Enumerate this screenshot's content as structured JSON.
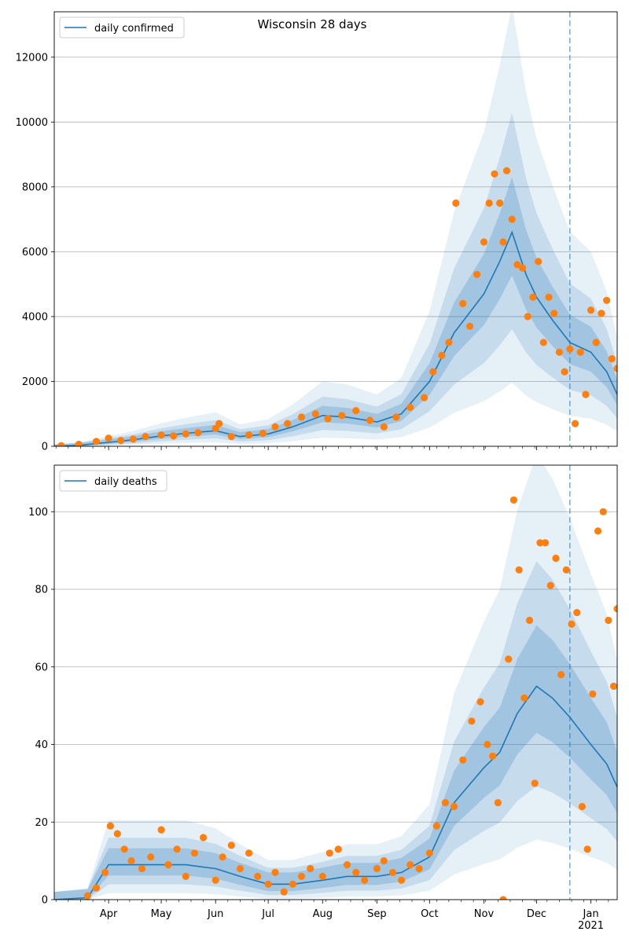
{
  "figure": {
    "title": "Wisconsin 28 days"
  },
  "colors": {
    "model": "#1f77b4",
    "observed": "#ff7f0e",
    "grid": "#b0b0b0",
    "band": "#1f77b4"
  },
  "x_axis": {
    "start_date": "2020-03-01",
    "end_date": "2021-01-16",
    "month_ticks": [
      {
        "date": "2020-04-01",
        "label": "Apr"
      },
      {
        "date": "2020-05-01",
        "label": "May"
      },
      {
        "date": "2020-06-01",
        "label": "Jun"
      },
      {
        "date": "2020-07-01",
        "label": "Jul"
      },
      {
        "date": "2020-08-01",
        "label": "Aug"
      },
      {
        "date": "2020-09-01",
        "label": "Sep"
      },
      {
        "date": "2020-10-01",
        "label": "Oct"
      },
      {
        "date": "2020-11-01",
        "label": "Nov"
      },
      {
        "date": "2020-12-01",
        "label": "Dec"
      },
      {
        "date": "2021-01-01",
        "label": "Jan"
      }
    ],
    "year_label": "2021",
    "forecast_line_date": "2020-12-20"
  },
  "chart_data": [
    {
      "type": "line",
      "title": "Wisconsin 28 days",
      "ylim": [
        0,
        13400
      ],
      "yticks": [
        0,
        2000,
        4000,
        6000,
        8000,
        10000,
        12000
      ],
      "grid": "horizontal",
      "legend": {
        "position": "top-left",
        "entries": [
          "daily confirmed"
        ]
      },
      "series": [
        {
          "name": "daily confirmed",
          "kind": "model-median",
          "x": [
            "2020-03-01",
            "2020-03-15",
            "2020-04-01",
            "2020-04-15",
            "2020-05-01",
            "2020-05-15",
            "2020-06-01",
            "2020-06-15",
            "2020-07-01",
            "2020-07-15",
            "2020-08-01",
            "2020-08-15",
            "2020-09-01",
            "2020-09-15",
            "2020-10-01",
            "2020-10-15",
            "2020-11-01",
            "2020-11-10",
            "2020-11-17",
            "2020-11-25",
            "2020-12-01",
            "2020-12-10",
            "2020-12-20",
            "2021-01-01",
            "2021-01-10",
            "2021-01-16"
          ],
          "y": [
            0,
            30,
            120,
            200,
            320,
            400,
            480,
            300,
            380,
            600,
            950,
            900,
            750,
            1000,
            2000,
            3500,
            4700,
            5700,
            6600,
            5300,
            4600,
            3900,
            3200,
            2900,
            2300,
            1600
          ]
        },
        {
          "name": "",
          "kind": "observed",
          "x": [
            "2020-03-05",
            "2020-03-15",
            "2020-03-25",
            "2020-04-01",
            "2020-04-08",
            "2020-04-15",
            "2020-04-22",
            "2020-05-01",
            "2020-05-08",
            "2020-05-15",
            "2020-05-22",
            "2020-06-01",
            "2020-06-03",
            "2020-06-10",
            "2020-06-20",
            "2020-06-28",
            "2020-07-05",
            "2020-07-12",
            "2020-07-20",
            "2020-07-28",
            "2020-08-04",
            "2020-08-12",
            "2020-08-20",
            "2020-08-28",
            "2020-09-05",
            "2020-09-12",
            "2020-09-20",
            "2020-09-28",
            "2020-10-03",
            "2020-10-08",
            "2020-10-12",
            "2020-10-16",
            "2020-10-20",
            "2020-10-24",
            "2020-10-28",
            "2020-11-01",
            "2020-11-04",
            "2020-11-07",
            "2020-11-10",
            "2020-11-12",
            "2020-11-14",
            "2020-11-17",
            "2020-11-20",
            "2020-11-23",
            "2020-11-26",
            "2020-11-29",
            "2020-12-02",
            "2020-12-05",
            "2020-12-08",
            "2020-12-11",
            "2020-12-14",
            "2020-12-17",
            "2020-12-20",
            "2020-12-23",
            "2020-12-26",
            "2020-12-29",
            "2021-01-01",
            "2021-01-04",
            "2021-01-07",
            "2021-01-10",
            "2021-01-13",
            "2021-01-16"
          ],
          "y": [
            20,
            60,
            150,
            250,
            180,
            220,
            300,
            350,
            320,
            380,
            420,
            550,
            700,
            300,
            350,
            400,
            600,
            700,
            900,
            1000,
            850,
            950,
            1100,
            800,
            600,
            900,
            1200,
            1500,
            2300,
            2800,
            3200,
            7500,
            4400,
            3700,
            5300,
            6300,
            7500,
            8400,
            7500,
            6300,
            8500,
            7000,
            5600,
            5500,
            4000,
            4600,
            5700,
            3200,
            4600,
            4100,
            2900,
            2300,
            3000,
            700,
            2900,
            1600,
            4200,
            3200,
            4100,
            4500,
            2700,
            2400
          ]
        }
      ]
    },
    {
      "type": "line",
      "ylim": [
        0,
        112
      ],
      "yticks": [
        0,
        20,
        40,
        60,
        80,
        100
      ],
      "grid": "horizontal",
      "legend": {
        "position": "top-left",
        "entries": [
          "daily deaths"
        ]
      },
      "series": [
        {
          "name": "daily deaths",
          "kind": "model-median",
          "x": [
            "2020-03-01",
            "2020-03-20",
            "2020-04-01",
            "2020-04-15",
            "2020-05-01",
            "2020-05-15",
            "2020-06-01",
            "2020-06-15",
            "2020-07-01",
            "2020-07-15",
            "2020-08-01",
            "2020-08-15",
            "2020-09-01",
            "2020-09-15",
            "2020-10-01",
            "2020-10-15",
            "2020-11-01",
            "2020-11-10",
            "2020-11-20",
            "2020-12-01",
            "2020-12-10",
            "2020-12-20",
            "2021-01-01",
            "2021-01-10",
            "2021-01-16"
          ],
          "y": [
            0,
            0.5,
            9,
            9,
            9,
            9,
            8,
            6,
            4,
            4,
            5,
            6,
            6,
            7,
            11,
            25,
            34,
            38,
            48,
            55,
            52,
            47,
            40,
            35,
            29
          ]
        },
        {
          "name": "",
          "kind": "observed",
          "x": [
            "2020-03-20",
            "2020-03-25",
            "2020-03-30",
            "2020-04-02",
            "2020-04-06",
            "2020-04-10",
            "2020-04-14",
            "2020-04-20",
            "2020-04-25",
            "2020-05-01",
            "2020-05-05",
            "2020-05-10",
            "2020-05-15",
            "2020-05-20",
            "2020-05-25",
            "2020-06-01",
            "2020-06-05",
            "2020-06-10",
            "2020-06-15",
            "2020-06-20",
            "2020-06-25",
            "2020-07-01",
            "2020-07-05",
            "2020-07-10",
            "2020-07-15",
            "2020-07-20",
            "2020-07-25",
            "2020-08-01",
            "2020-08-05",
            "2020-08-10",
            "2020-08-15",
            "2020-08-20",
            "2020-08-25",
            "2020-09-01",
            "2020-09-05",
            "2020-09-10",
            "2020-09-15",
            "2020-09-20",
            "2020-09-25",
            "2020-10-01",
            "2020-10-05",
            "2020-10-10",
            "2020-10-15",
            "2020-10-20",
            "2020-10-25",
            "2020-10-30",
            "2020-11-03",
            "2020-11-06",
            "2020-11-09",
            "2020-11-12",
            "2020-11-15",
            "2020-11-18",
            "2020-11-21",
            "2020-11-24",
            "2020-11-27",
            "2020-11-30",
            "2020-12-03",
            "2020-12-06",
            "2020-12-09",
            "2020-12-12",
            "2020-12-15",
            "2020-12-18",
            "2020-12-21",
            "2020-12-24",
            "2020-12-27",
            "2020-12-30",
            "2021-01-02",
            "2021-01-05",
            "2021-01-08",
            "2021-01-11",
            "2021-01-14",
            "2021-01-16"
          ],
          "y": [
            1,
            3,
            7,
            19,
            17,
            13,
            10,
            8,
            11,
            18,
            9,
            13,
            6,
            12,
            16,
            5,
            11,
            14,
            8,
            12,
            6,
            4,
            7,
            2,
            4,
            6,
            8,
            6,
            12,
            13,
            9,
            7,
            5,
            8,
            10,
            7,
            5,
            9,
            8,
            12,
            19,
            25,
            24,
            36,
            46,
            51,
            40,
            37,
            25,
            0,
            62,
            103,
            85,
            52,
            72,
            30,
            92,
            92,
            81,
            88,
            58,
            85,
            71,
            74,
            24,
            13,
            53,
            95,
            100,
            72,
            55,
            75
          ]
        }
      ]
    }
  ]
}
